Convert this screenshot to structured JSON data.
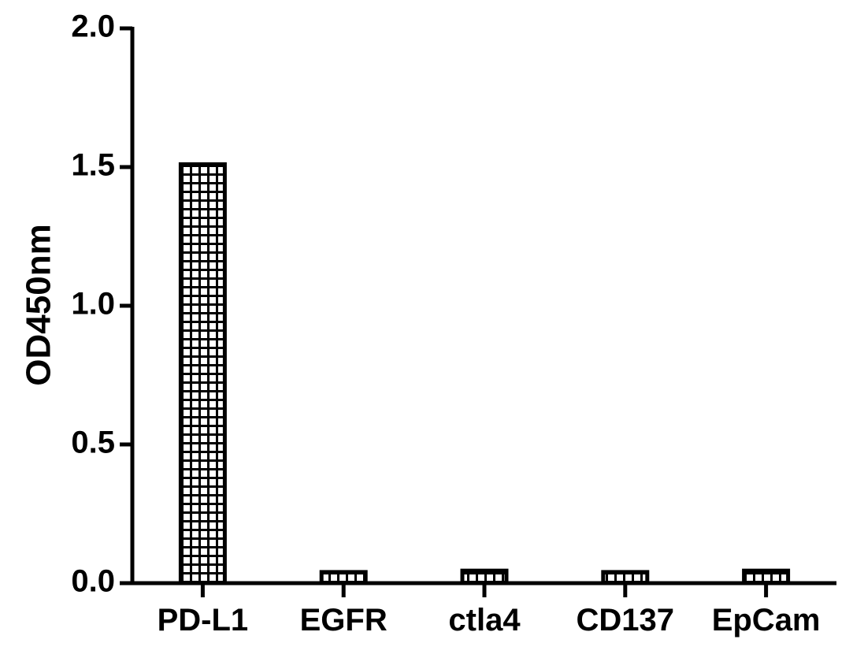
{
  "chart_data": {
    "type": "bar",
    "title": "",
    "xlabel": "",
    "ylabel": "OD450nm",
    "categories": [
      "PD-L1",
      "EGFR",
      "ctla4",
      "CD137",
      "EpCam"
    ],
    "values": [
      1.51,
      0.04,
      0.045,
      0.04,
      0.045
    ],
    "ylim": [
      0,
      2.0
    ],
    "yticks": [
      "0.0",
      "0.5",
      "1.0",
      "1.5",
      "2.0"
    ],
    "grid": false,
    "legend": "none",
    "bar_fill": "grid-pattern",
    "colors": {
      "stroke": "#000000",
      "fill": "#ffffff"
    }
  }
}
